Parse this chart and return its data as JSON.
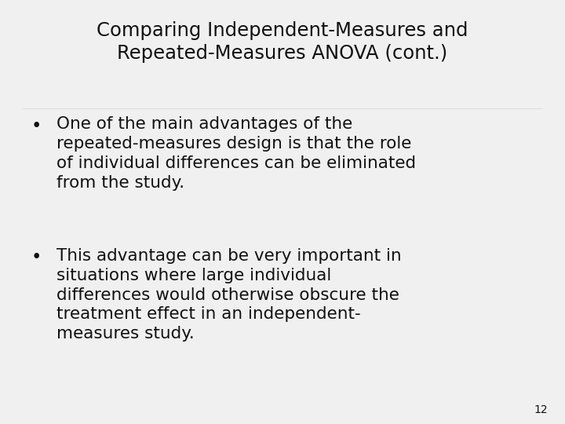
{
  "title_line1": "Comparing Independent-Measures and",
  "title_line2": "Repeated-Measures ANOVA (cont.)",
  "bullet1_lines": [
    "One of the main advantages of the",
    "repeated-measures design is that the role",
    "of individual differences can be eliminated",
    "from the study."
  ],
  "bullet2_lines": [
    "This advantage can be very important in",
    "situations where large individual",
    "differences would otherwise obscure the",
    "treatment effect in an independent-",
    "measures study."
  ],
  "page_number": "12",
  "bg_color": "#f0f0f0",
  "text_color": "#111111",
  "title_color": "#111111",
  "title_fontsize": 17.5,
  "body_fontsize": 15.5,
  "page_num_fontsize": 10
}
